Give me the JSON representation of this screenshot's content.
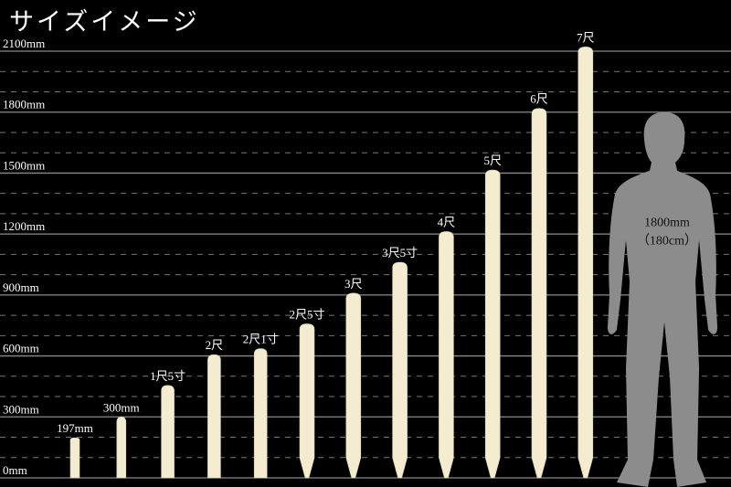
{
  "title": "サイズイメージ",
  "chart_data": {
    "type": "bar",
    "title": "サイズイメージ",
    "ylim": [
      0,
      2100
    ],
    "ytick_step": 300,
    "minor_grid_step": 100,
    "grid": true,
    "ytick_labels": [
      "0mm",
      "300mm",
      "600mm",
      "900mm",
      "1200mm",
      "1500mm",
      "1800mm",
      "2100mm"
    ],
    "categories": [
      "197mm",
      "300mm",
      "1尺5寸",
      "2尺",
      "2尺1寸",
      "2尺5寸",
      "3尺",
      "3尺5寸",
      "4尺",
      "5尺",
      "6尺",
      "7尺"
    ],
    "values": [
      197,
      300,
      455,
      606,
      636,
      758,
      909,
      1061,
      1212,
      1515,
      1818,
      2121
    ],
    "bar_color": "#f3ecd0",
    "reference": {
      "label_line1": "1800mm",
      "label_line2": "（180cm）",
      "value": 1800,
      "color": "#8c8c8c"
    }
  }
}
